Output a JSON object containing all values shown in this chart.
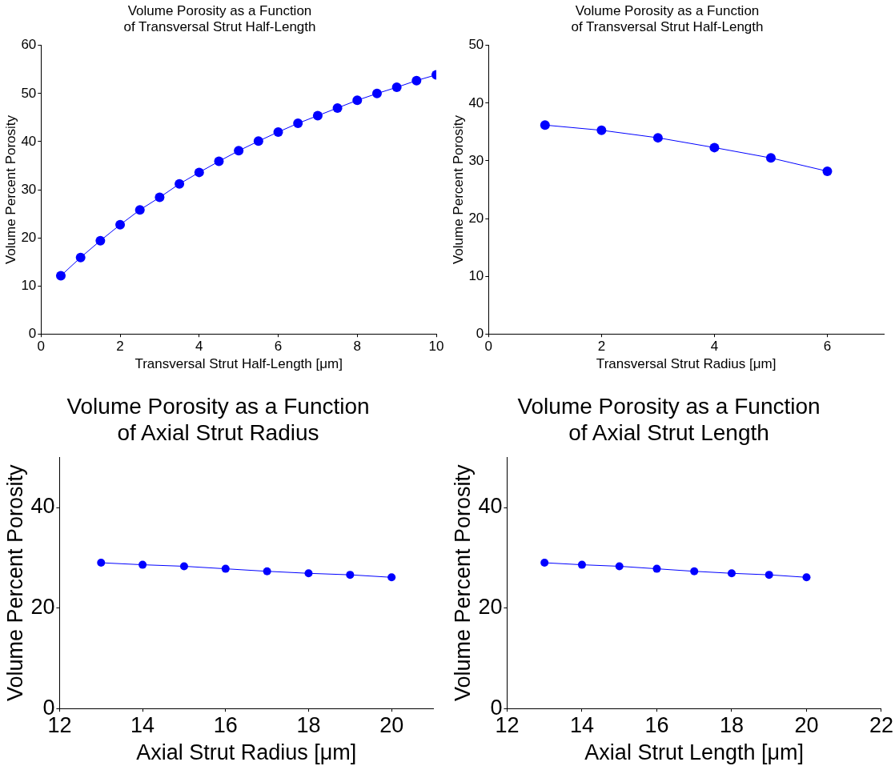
{
  "chart_data": [
    {
      "type": "line",
      "title": "Volume Porosity as a Function\nof Transversal Strut Half-Length",
      "xlabel": "Transversal Strut Half-Length [μm]",
      "ylabel": "Volume Percent Porosity",
      "x": [
        0.5,
        1,
        1.5,
        2,
        2.5,
        3,
        3.5,
        4,
        4.5,
        5,
        5.5,
        6,
        6.5,
        7,
        7.5,
        8,
        8.5,
        9,
        9.5,
        10
      ],
      "series": [
        {
          "color": "#0000ff",
          "values": [
            12.1,
            15.9,
            19.4,
            22.7,
            25.8,
            28.4,
            31.2,
            33.6,
            35.9,
            38.1,
            40.1,
            42.0,
            43.8,
            45.4,
            47.0,
            48.6,
            50.0,
            51.3,
            52.7,
            53.9
          ]
        }
      ],
      "xlim": [
        0,
        10
      ],
      "xticks": [
        0,
        2,
        4,
        6,
        8,
        10
      ],
      "ylim": [
        0,
        60
      ],
      "yticks": [
        0,
        10,
        20,
        30,
        40,
        50,
        60
      ],
      "grid": false,
      "legend": false,
      "marker": "circle",
      "line_style": "solid"
    },
    {
      "type": "line",
      "title": "Volume Porosity as a Function\nof Transversal Strut Half-Length",
      "xlabel": "Transversal Strut Radius [μm]",
      "ylabel": "Volume Percent Porosity",
      "x": [
        1,
        2,
        3,
        4,
        5,
        6
      ],
      "series": [
        {
          "color": "#0000ff",
          "values": [
            36.2,
            35.3,
            34.0,
            32.3,
            30.5,
            28.2
          ]
        }
      ],
      "xlim": [
        0,
        7
      ],
      "xticks": [
        0,
        2,
        4,
        6
      ],
      "ylim": [
        0,
        50
      ],
      "yticks": [
        0,
        10,
        20,
        30,
        40,
        50
      ],
      "grid": false,
      "legend": false,
      "marker": "circle",
      "line_style": "solid"
    },
    {
      "type": "line",
      "title": "Volume Porosity as a Function\nof Axial Strut Radius",
      "xlabel": "Axial Strut Radius [μm]",
      "ylabel": "Volume Percent Porosity",
      "x": [
        13,
        14,
        15,
        16,
        17,
        18,
        19,
        20
      ],
      "series": [
        {
          "color": "#0000ff",
          "values": [
            29.0,
            28.6,
            28.3,
            27.8,
            27.3,
            26.9,
            26.6,
            26.1
          ]
        }
      ],
      "xlim": [
        12,
        21
      ],
      "xticks": [
        12,
        14,
        16,
        18,
        20
      ],
      "ylim": [
        0,
        50
      ],
      "yticks": [
        0,
        20,
        40
      ],
      "grid": false,
      "legend": false,
      "marker": "circle",
      "line_style": "solid"
    },
    {
      "type": "line",
      "title": "Volume Porosity as a Function\nof Axial Strut Length",
      "xlabel": "Axial Strut Length [μm]",
      "ylabel": "Volume Percent Porosity",
      "x": [
        13,
        14,
        15,
        16,
        17,
        18,
        19,
        20
      ],
      "series": [
        {
          "color": "#0000ff",
          "values": [
            29.0,
            28.6,
            28.3,
            27.8,
            27.3,
            26.9,
            26.6,
            26.1
          ]
        }
      ],
      "xlim": [
        12,
        22
      ],
      "xticks": [
        12,
        14,
        16,
        18,
        20,
        22
      ],
      "ylim": [
        0,
        50
      ],
      "yticks": [
        0,
        20,
        40
      ],
      "grid": false,
      "legend": false,
      "marker": "circle",
      "line_style": "solid"
    }
  ]
}
